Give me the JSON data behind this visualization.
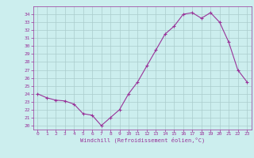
{
  "x": [
    0,
    1,
    2,
    3,
    4,
    5,
    6,
    7,
    8,
    9,
    10,
    11,
    12,
    13,
    14,
    15,
    16,
    17,
    18,
    19,
    20,
    21,
    22,
    23
  ],
  "y": [
    24.0,
    23.5,
    23.2,
    23.1,
    22.7,
    21.5,
    21.3,
    20.0,
    21.0,
    22.0,
    24.0,
    25.5,
    27.5,
    29.5,
    31.5,
    32.5,
    34.0,
    34.2,
    33.5,
    34.2,
    33.0,
    30.5,
    27.0,
    25.5
  ],
  "line_color": "#993399",
  "marker": "+",
  "marker_size": 3,
  "bg_color": "#cceeee",
  "grid_color": "#aacccc",
  "xlabel": "Windchill (Refroidissement éolien,°C)",
  "xlabel_color": "#993399",
  "tick_color": "#993399",
  "ylim": [
    19.5,
    35.0
  ],
  "xlim": [
    -0.5,
    23.5
  ],
  "yticks": [
    20,
    21,
    22,
    23,
    24,
    25,
    26,
    27,
    28,
    29,
    30,
    31,
    32,
    33,
    34
  ],
  "xticks": [
    0,
    1,
    2,
    3,
    4,
    5,
    6,
    7,
    8,
    9,
    10,
    11,
    12,
    13,
    14,
    15,
    16,
    17,
    18,
    19,
    20,
    21,
    22,
    23
  ]
}
